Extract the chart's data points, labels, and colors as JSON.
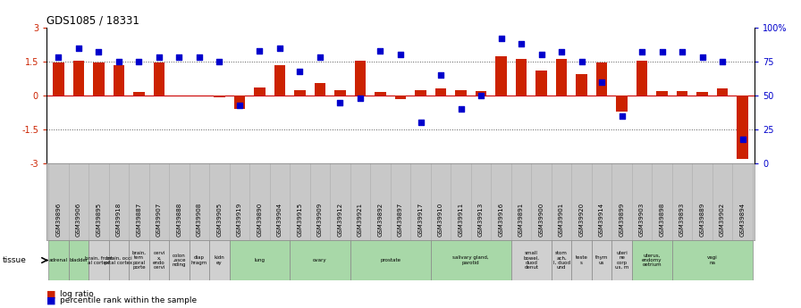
{
  "title": "GDS1085 / 18331",
  "samples": [
    "GSM39896",
    "GSM39906",
    "GSM39895",
    "GSM39918",
    "GSM39887",
    "GSM39907",
    "GSM39888",
    "GSM39908",
    "GSM39905",
    "GSM39919",
    "GSM39890",
    "GSM39904",
    "GSM39915",
    "GSM39909",
    "GSM39912",
    "GSM39921",
    "GSM39892",
    "GSM39897",
    "GSM39917",
    "GSM39910",
    "GSM39911",
    "GSM39913",
    "GSM39916",
    "GSM39891",
    "GSM39900",
    "GSM39901",
    "GSM39920",
    "GSM39914",
    "GSM39899",
    "GSM39903",
    "GSM39898",
    "GSM39893",
    "GSM39889",
    "GSM39902",
    "GSM39894"
  ],
  "log_ratio": [
    1.45,
    1.55,
    1.45,
    1.35,
    0.15,
    1.45,
    0.0,
    0.0,
    -0.1,
    -0.6,
    0.35,
    1.35,
    0.25,
    0.55,
    0.25,
    1.55,
    0.15,
    -0.15,
    0.25,
    0.3,
    0.25,
    0.2,
    1.75,
    1.6,
    1.1,
    1.6,
    0.95,
    1.45,
    -0.7,
    1.55,
    0.2,
    0.2,
    0.15,
    0.3,
    -2.8
  ],
  "percentile": [
    78,
    85,
    82,
    75,
    75,
    78,
    78,
    78,
    75,
    43,
    83,
    85,
    68,
    78,
    45,
    48,
    83,
    80,
    30,
    65,
    40,
    50,
    92,
    88,
    80,
    82,
    75,
    60,
    35,
    82,
    82,
    82,
    78,
    75,
    18
  ],
  "tissue_segments": [
    {
      "label": "adrenal",
      "start": 0,
      "end": 1,
      "green": true
    },
    {
      "label": "bladder",
      "start": 1,
      "end": 2,
      "green": true
    },
    {
      "label": "brain, front\nal cortex",
      "start": 2,
      "end": 3,
      "green": false
    },
    {
      "label": "brain, occi\npital cortex",
      "start": 3,
      "end": 4,
      "green": false
    },
    {
      "label": "brain,\ntem\nporal\nporte",
      "start": 4,
      "end": 5,
      "green": false
    },
    {
      "label": "cervi\nx,\nendo\ncervi",
      "start": 5,
      "end": 6,
      "green": false
    },
    {
      "label": "colon\n,asce\nnding",
      "start": 6,
      "end": 7,
      "green": false
    },
    {
      "label": "diap\nhragm",
      "start": 7,
      "end": 8,
      "green": false
    },
    {
      "label": "kidn\ney",
      "start": 8,
      "end": 9,
      "green": false
    },
    {
      "label": "lung",
      "start": 9,
      "end": 12,
      "green": true
    },
    {
      "label": "ovary",
      "start": 12,
      "end": 15,
      "green": true
    },
    {
      "label": "prostate",
      "start": 15,
      "end": 19,
      "green": true
    },
    {
      "label": "salivary gland,\nparotid",
      "start": 19,
      "end": 23,
      "green": true
    },
    {
      "label": "small\nbowel,\nduod\ndenut",
      "start": 23,
      "end": 25,
      "green": false
    },
    {
      "label": "stom\nach,\nI, duod\nund",
      "start": 25,
      "end": 26,
      "green": false
    },
    {
      "label": "teste\ns",
      "start": 26,
      "end": 27,
      "green": false
    },
    {
      "label": "thym\nus",
      "start": 27,
      "end": 28,
      "green": false
    },
    {
      "label": "uteri\nne\ncorp\nus, m",
      "start": 28,
      "end": 29,
      "green": false
    },
    {
      "label": "uterus,\nendomy\noetrium",
      "start": 29,
      "end": 31,
      "green": true
    },
    {
      "label": "vagi\nna",
      "start": 31,
      "end": 35,
      "green": true
    }
  ],
  "green_color": "#a8d8a8",
  "grey_color": "#d0d0d0",
  "label_bg_color": "#c8c8c8",
  "bar_color": "#cc2200",
  "dot_color": "#0000cc",
  "ylim": [
    -3,
    3
  ],
  "yticks": [
    -3,
    -1.5,
    0,
    1.5,
    3
  ],
  "right_ytick_labels": [
    "0",
    "25",
    "50",
    "75",
    "100%"
  ]
}
